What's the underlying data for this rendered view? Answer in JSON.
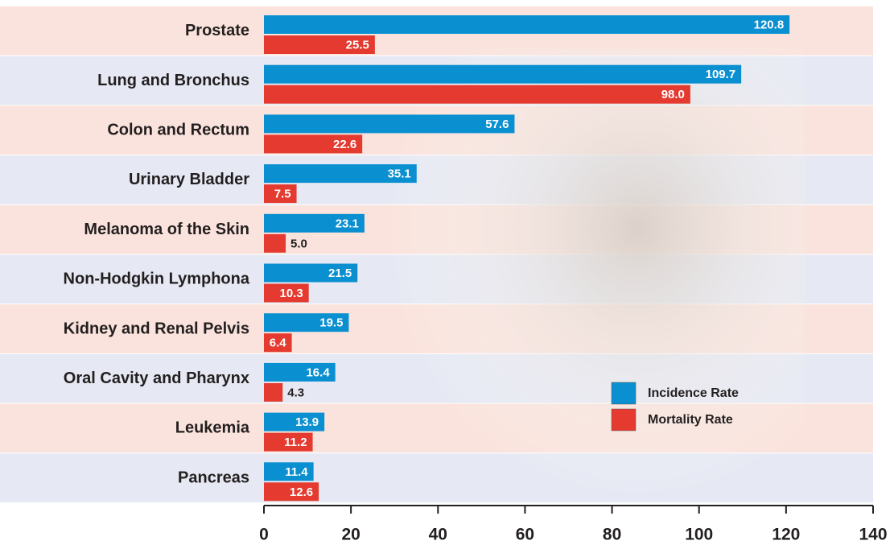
{
  "chart_data": {
    "type": "bar",
    "orientation": "horizontal",
    "categories": [
      "Prostate",
      "Lung and Bronchus",
      "Colon and Rectum",
      "Urinary Bladder",
      "Melanoma of the Skin",
      "Non-Hodgkin Lymphona",
      "Kidney and Renal Pelvis",
      "Oral Cavity and Pharynx",
      "Leukemia",
      "Pancreas"
    ],
    "series": [
      {
        "name": "Incidence Rate",
        "color": "#0a8fd0",
        "values": [
          120.8,
          109.7,
          57.6,
          35.1,
          23.1,
          21.5,
          19.5,
          16.4,
          13.9,
          11.4
        ],
        "value_labels": [
          "120.8",
          "109.7",
          "57.6",
          "35.1",
          "23.1",
          "21.5",
          "19.5",
          "16.4",
          "13.9",
          "11.4"
        ]
      },
      {
        "name": "Mortality Rate",
        "color": "#e43a2f",
        "values": [
          25.5,
          98,
          22.6,
          7.5,
          5,
          10.3,
          6.4,
          4.3,
          11.2,
          12.6
        ],
        "value_labels": [
          "25.5",
          "98.0",
          "22.6",
          "7.5",
          "5.0",
          "10.3",
          "6.4",
          "4.3",
          "11.2",
          "12.6"
        ]
      }
    ],
    "xlim": [
      0,
      140
    ],
    "xticks": [
      0,
      20,
      40,
      60,
      80,
      100,
      120,
      140
    ],
    "legend": "lower right"
  }
}
